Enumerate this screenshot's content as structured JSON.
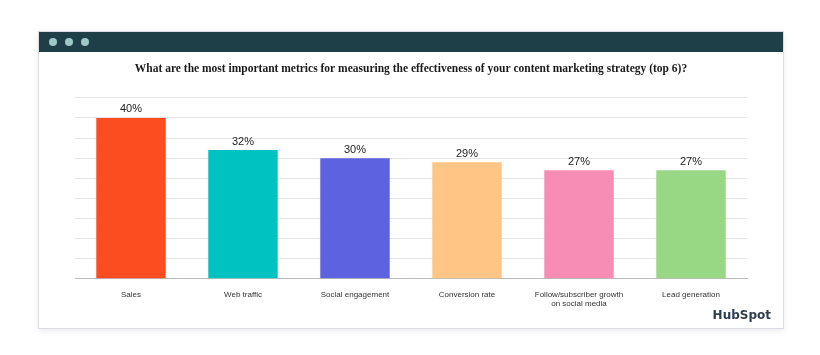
{
  "chart_data": {
    "type": "bar",
    "title": "What are the most important metrics for measuring the effectiveness of your content marketing strategy (top 6)?",
    "categories": [
      "Sales",
      "Web traffic",
      "Social engagement",
      "Conversion rate",
      "Follow/subscriber growth on social media",
      "Lead generation"
    ],
    "values": [
      40,
      32,
      30,
      29,
      27,
      27
    ],
    "value_labels": [
      "40%",
      "32%",
      "30%",
      "29%",
      "27%",
      "27%"
    ],
    "colors": [
      "#fb4d1f",
      "#00c3c1",
      "#5c62e0",
      "#ffc584",
      "#f78db4",
      "#98d784"
    ],
    "ylim": [
      0,
      45
    ],
    "yticks": [
      0,
      5,
      10,
      15,
      20,
      25,
      30,
      35,
      40,
      45
    ],
    "grid": true,
    "data_labels": true,
    "tick_labels": "x",
    "annotations": [
      "HubSpot"
    ]
  }
}
